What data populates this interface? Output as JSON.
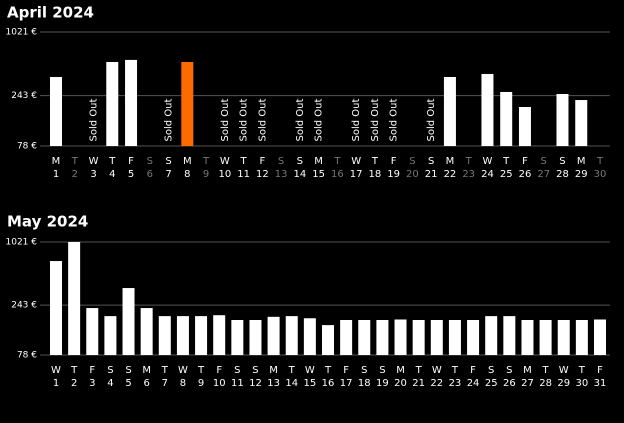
{
  "chart_data": [
    {
      "type": "bar",
      "title": "April 2024",
      "log_scale": true,
      "grid": true,
      "color": "#ffffff",
      "highlight": {
        "category": "8",
        "color": "#ff6a00"
      },
      "categories": [
        "1",
        "2",
        "3",
        "4",
        "5",
        "6",
        "7",
        "8",
        "9",
        "10",
        "11",
        "12",
        "13",
        "14",
        "15",
        "16",
        "17",
        "18",
        "19",
        "20",
        "21",
        "22",
        "23",
        "24",
        "25",
        "26",
        "27",
        "28",
        "29",
        "30"
      ],
      "weekdays": [
        "M",
        "T",
        "W",
        "T",
        "F",
        "S",
        "S",
        "M",
        "T",
        "W",
        "T",
        "F",
        "S",
        "S",
        "M",
        "T",
        "W",
        "T",
        "F",
        "S",
        "S",
        "M",
        "T",
        "W",
        "T",
        "F",
        "S",
        "S",
        "M",
        "T"
      ],
      "values": [
        370,
        null,
        null,
        519,
        544,
        null,
        null,
        519,
        null,
        null,
        null,
        null,
        null,
        null,
        null,
        null,
        null,
        null,
        null,
        null,
        null,
        370,
        null,
        396,
        264,
        188,
        null,
        252,
        220,
        null
      ],
      "annotations": [
        {
          "category": "3",
          "text": "Sold Out"
        },
        {
          "category": "7",
          "text": "Sold Out"
        },
        {
          "category": "10",
          "text": "Sold Out"
        },
        {
          "category": "11",
          "text": "Sold Out"
        },
        {
          "category": "12",
          "text": "Sold Out"
        },
        {
          "category": "14",
          "text": "Sold Out"
        },
        {
          "category": "15",
          "text": "Sold Out"
        },
        {
          "category": "17",
          "text": "Sold Out"
        },
        {
          "category": "18",
          "text": "Sold Out"
        },
        {
          "category": "19",
          "text": "Sold Out"
        },
        {
          "category": "21",
          "text": "Sold Out"
        }
      ],
      "ylim": [
        78,
        1021
      ],
      "yticks": [
        {
          "value": 78,
          "label": "78 €"
        },
        {
          "value": 243,
          "label": "243 €"
        },
        {
          "value": 1021,
          "label": "1021 €"
        }
      ]
    },
    {
      "type": "bar",
      "title": "May 2024",
      "log_scale": true,
      "grid": true,
      "color": "#ffffff",
      "categories": [
        "1",
        "2",
        "3",
        "4",
        "5",
        "6",
        "7",
        "8",
        "9",
        "10",
        "11",
        "12",
        "13",
        "14",
        "15",
        "16",
        "17",
        "18",
        "19",
        "20",
        "21",
        "22",
        "23",
        "24",
        "25",
        "26",
        "27",
        "28",
        "29",
        "30",
        "31"
      ],
      "weekdays": [
        "W",
        "T",
        "F",
        "S",
        "S",
        "M",
        "T",
        "W",
        "T",
        "F",
        "S",
        "S",
        "M",
        "T",
        "W",
        "T",
        "F",
        "S",
        "S",
        "M",
        "T",
        "W",
        "T",
        "F",
        "S",
        "S",
        "M",
        "T",
        "W",
        "T",
        "F"
      ],
      "values": [
        662,
        1021,
        227,
        189,
        358,
        227,
        189,
        189,
        189,
        193,
        173,
        173,
        186,
        189,
        180,
        154,
        173,
        173,
        173,
        175,
        173,
        173,
        173,
        173,
        189,
        189,
        173,
        173,
        173,
        173,
        175
      ],
      "ylim": [
        78,
        1021
      ],
      "yticks": [
        {
          "value": 78,
          "label": "78 €"
        },
        {
          "value": 243,
          "label": "243 €"
        },
        {
          "value": 1021,
          "label": "1021 €"
        }
      ]
    }
  ]
}
